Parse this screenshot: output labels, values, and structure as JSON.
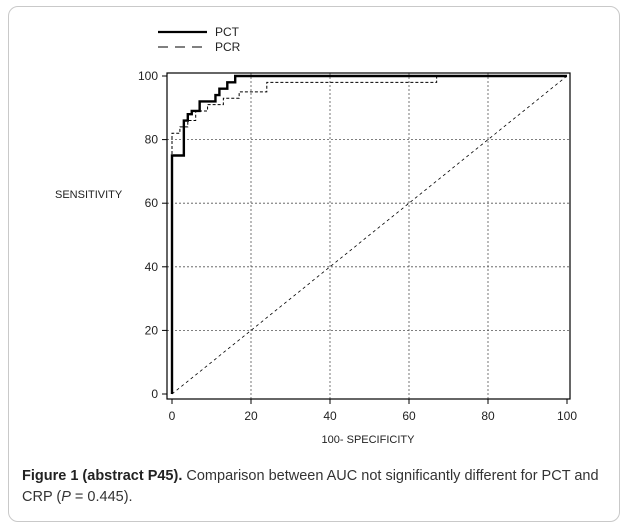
{
  "chart_data": {
    "type": "line",
    "xlabel": "100- SPECIFICITY",
    "ylabel": "SENSITIVITY",
    "xlim": [
      0,
      100
    ],
    "ylim": [
      0,
      100
    ],
    "xticks": [
      "0",
      "20",
      "40",
      "60",
      "80",
      "100"
    ],
    "yticks": [
      "0",
      "20",
      "40",
      "60",
      "80",
      "100"
    ],
    "grid": true,
    "legend_position": "top-left",
    "series": [
      {
        "name": "PCT",
        "style": "solid",
        "color": "#000000",
        "x": [
          0,
          0,
          3,
          3,
          4,
          4,
          5,
          5,
          7,
          7,
          11,
          11,
          12,
          12,
          14,
          14,
          16,
          16,
          100
        ],
        "y": [
          0,
          75,
          75,
          86,
          86,
          88,
          88,
          89,
          89,
          92,
          92,
          94,
          94,
          96,
          96,
          98,
          98,
          100,
          100
        ]
      },
      {
        "name": "PCR",
        "style": "dashed",
        "color": "#000000",
        "x": [
          0,
          0,
          2,
          2,
          4,
          4,
          6,
          6,
          9,
          9,
          13,
          13,
          17,
          17,
          24,
          24,
          67,
          67,
          100
        ],
        "y": [
          0,
          82,
          82,
          84,
          84,
          86,
          86,
          89,
          89,
          91,
          91,
          93,
          93,
          95,
          95,
          98,
          98,
          100,
          100
        ]
      },
      {
        "name": "",
        "style": "dashed-thin",
        "color": "#000000",
        "x": [
          0,
          100
        ],
        "y": [
          0,
          100
        ]
      }
    ]
  },
  "caption": {
    "bold": "Figure 1 (abstract P45).",
    "text_before": " Comparison between AUC not significantly different for PCT and CRP (",
    "italic": "P",
    "text_after": " = 0.445)."
  }
}
